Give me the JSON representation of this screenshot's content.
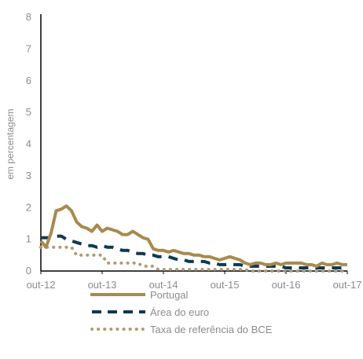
{
  "chart_data": {
    "type": "line",
    "title": "",
    "xlabel": "",
    "ylabel": "em percentagem",
    "ylim": [
      0,
      8
    ],
    "yticks": [
      "0",
      "1",
      "2",
      "3",
      "4",
      "5",
      "6",
      "7",
      "8"
    ],
    "xticks": [
      "out-12",
      "out-13",
      "out-14",
      "out-15",
      "out-16",
      "out-17"
    ],
    "x_start": "2012-10",
    "x_end": "2017-10",
    "legend_position": "bottom",
    "grid": false,
    "series": [
      {
        "name": "Portugal",
        "color": "#a88a4e",
        "style": "solid",
        "values": [
          0.95,
          0.75,
          1.2,
          1.9,
          1.95,
          2.05,
          1.9,
          1.55,
          1.4,
          1.35,
          1.25,
          1.45,
          1.25,
          1.35,
          1.3,
          1.25,
          1.15,
          1.15,
          1.25,
          1.15,
          1.05,
          1.0,
          0.7,
          0.65,
          0.65,
          0.6,
          0.65,
          0.6,
          0.55,
          0.55,
          0.5,
          0.5,
          0.45,
          0.45,
          0.4,
          0.35,
          0.4,
          0.45,
          0.4,
          0.35,
          0.25,
          0.2,
          0.25,
          0.25,
          0.2,
          0.2,
          0.25,
          0.2,
          0.25,
          0.25,
          0.25,
          0.25,
          0.2,
          0.2,
          0.15,
          0.25,
          0.2,
          0.2,
          0.25,
          0.2,
          0.2
        ]
      },
      {
        "name": "Área do euro",
        "color": "#0d3a4f",
        "style": "dashed",
        "values": [
          1.05,
          1.05,
          1.05,
          1.1,
          1.1,
          1.0,
          0.95,
          0.9,
          0.85,
          0.8,
          0.8,
          0.75,
          0.8,
          0.75,
          0.75,
          0.7,
          0.65,
          0.65,
          0.6,
          0.55,
          0.55,
          0.5,
          0.5,
          0.45,
          0.45,
          0.45,
          0.4,
          0.35,
          0.35,
          0.3,
          0.3,
          0.3,
          0.3,
          0.25,
          0.25,
          0.2,
          0.2,
          0.2,
          0.2,
          0.2,
          0.15,
          0.15,
          0.15,
          0.15,
          0.15,
          0.15,
          0.15,
          0.15,
          0.1,
          0.1,
          0.1,
          0.1,
          0.1,
          0.1,
          0.1,
          0.1,
          0.1,
          0.1,
          0.1,
          0.1,
          0.1
        ]
      },
      {
        "name": "Taxa de referência do BCE",
        "color": "#b09a70",
        "style": "dotted",
        "values": [
          0.75,
          0.75,
          0.75,
          0.75,
          0.75,
          0.75,
          0.75,
          0.5,
          0.5,
          0.5,
          0.5,
          0.5,
          0.5,
          0.25,
          0.25,
          0.25,
          0.25,
          0.25,
          0.25,
          0.25,
          0.15,
          0.15,
          0.15,
          0.05,
          0.05,
          0.05,
          0.05,
          0.05,
          0.05,
          0.05,
          0.05,
          0.05,
          0.05,
          0.05,
          0.05,
          0.05,
          0.05,
          0.05,
          0.05,
          0.05,
          0.05,
          0.0,
          0.0,
          0.0,
          0.0,
          0.0,
          0.0,
          0.0,
          0.0,
          0.0,
          0.0,
          0.0,
          0.0,
          0.0,
          0.0,
          0.0,
          0.0,
          0.0,
          0.0,
          0.0,
          0.0
        ]
      }
    ]
  }
}
